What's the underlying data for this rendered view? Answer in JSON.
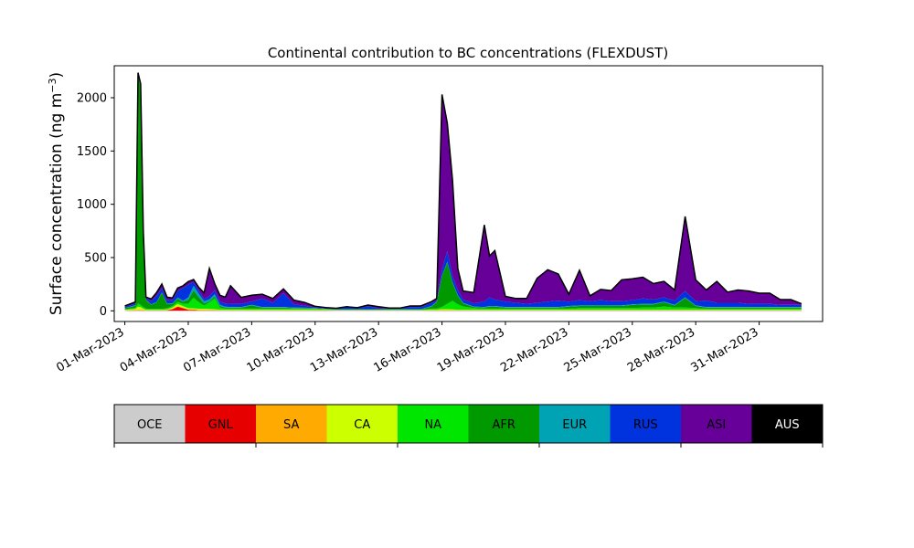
{
  "chart_data": {
    "type": "area",
    "title": "Continental contribution to BC concentrations (FLEXDUST)",
    "ylabel": "Surface concentration (ng m",
    "ylabel_sup": "−3",
    "ylabel_close": ")",
    "xlabel": "",
    "ylim": [
      -100,
      2300
    ],
    "xlim": [
      "2023-02-28T12:00",
      "2023-04-03T00:00"
    ],
    "yticks": [
      0,
      500,
      1000,
      1500,
      2000
    ],
    "yticklabels": [
      "0",
      "500",
      "1000",
      "1500",
      "2000"
    ],
    "xticks": [
      "2023-03-01",
      "2023-03-04",
      "2023-03-07",
      "2023-03-10",
      "2023-03-13",
      "2023-03-16",
      "2023-03-19",
      "2023-03-22",
      "2023-03-25",
      "2023-03-28",
      "2023-03-31"
    ],
    "xticklabels": [
      "01-Mar-2023",
      "04-Mar-2023",
      "07-Mar-2023",
      "10-Mar-2023",
      "13-Mar-2023",
      "16-Mar-2023",
      "19-Mar-2023",
      "22-Mar-2023",
      "25-Mar-2023",
      "28-Mar-2023",
      "31-Mar-2023"
    ],
    "stack_order": [
      "OCE",
      "GNL",
      "SA",
      "CA",
      "NA",
      "AFR",
      "EUR",
      "RUS",
      "ASI",
      "AUS"
    ],
    "x": [
      "2023-03-01T00:00",
      "2023-03-01T12:00",
      "2023-03-01T15:00",
      "2023-03-01T18:00",
      "2023-03-01T21:00",
      "2023-03-02T00:00",
      "2023-03-02T06:00",
      "2023-03-02T12:00",
      "2023-03-02T18:00",
      "2023-03-03T00:00",
      "2023-03-03T06:00",
      "2023-03-03T12:00",
      "2023-03-03T18:00",
      "2023-03-04T00:00",
      "2023-03-04T06:00",
      "2023-03-04T12:00",
      "2023-03-04T18:00",
      "2023-03-05T00:00",
      "2023-03-05T06:00",
      "2023-03-05T12:00",
      "2023-03-05T18:00",
      "2023-03-06T00:00",
      "2023-03-06T12:00",
      "2023-03-07T00:00",
      "2023-03-07T12:00",
      "2023-03-08T00:00",
      "2023-03-08T12:00",
      "2023-03-09T00:00",
      "2023-03-09T12:00",
      "2023-03-10T00:00",
      "2023-03-10T12:00",
      "2023-03-11T00:00",
      "2023-03-11T12:00",
      "2023-03-12T00:00",
      "2023-03-12T12:00",
      "2023-03-13T00:00",
      "2023-03-13T12:00",
      "2023-03-14T00:00",
      "2023-03-14T12:00",
      "2023-03-15T00:00",
      "2023-03-15T12:00",
      "2023-03-15T18:00",
      "2023-03-16T00:00",
      "2023-03-16T06:00",
      "2023-03-16T12:00",
      "2023-03-16T18:00",
      "2023-03-17T00:00",
      "2023-03-17T12:00",
      "2023-03-18T00:00",
      "2023-03-18T06:00",
      "2023-03-18T12:00",
      "2023-03-19T00:00",
      "2023-03-19T12:00",
      "2023-03-20T00:00",
      "2023-03-20T12:00",
      "2023-03-21T00:00",
      "2023-03-21T12:00",
      "2023-03-22T00:00",
      "2023-03-22T12:00",
      "2023-03-23T00:00",
      "2023-03-23T12:00",
      "2023-03-24T00:00",
      "2023-03-24T12:00",
      "2023-03-25T00:00",
      "2023-03-25T12:00",
      "2023-03-26T00:00",
      "2023-03-26T12:00",
      "2023-03-27T00:00",
      "2023-03-27T12:00",
      "2023-03-28T00:00",
      "2023-03-28T12:00",
      "2023-03-29T00:00",
      "2023-03-29T12:00",
      "2023-03-30T00:00",
      "2023-03-30T12:00",
      "2023-03-31T00:00",
      "2023-03-31T12:00",
      "2023-04-01T00:00",
      "2023-04-01T12:00",
      "2023-04-02T00:00"
    ],
    "series": [
      {
        "name": "OCE",
        "color": "#cccccc",
        "values": [
          0,
          0,
          0,
          0,
          0,
          0,
          0,
          0,
          0,
          0,
          0,
          0,
          0,
          0,
          0,
          0,
          0,
          0,
          0,
          0,
          0,
          0,
          0,
          0,
          0,
          0,
          0,
          0,
          0,
          0,
          0,
          0,
          0,
          0,
          0,
          0,
          0,
          0,
          0,
          0,
          0,
          0,
          0,
          0,
          0,
          0,
          0,
          0,
          0,
          0,
          0,
          0,
          0,
          0,
          0,
          0,
          0,
          0,
          0,
          0,
          0,
          0,
          0,
          0,
          0,
          0,
          0,
          0,
          0,
          0,
          0,
          0,
          0,
          0,
          0,
          0,
          0,
          0,
          0,
          0
        ]
      },
      {
        "name": "GNL",
        "color": "#e60000",
        "values": [
          2,
          5,
          5,
          5,
          5,
          3,
          3,
          3,
          3,
          5,
          15,
          40,
          25,
          10,
          8,
          5,
          5,
          5,
          5,
          3,
          3,
          3,
          3,
          3,
          3,
          3,
          3,
          3,
          3,
          3,
          3,
          2,
          2,
          2,
          2,
          2,
          2,
          2,
          2,
          2,
          3,
          3,
          3,
          3,
          3,
          3,
          3,
          3,
          3,
          3,
          3,
          3,
          3,
          3,
          3,
          3,
          3,
          3,
          3,
          3,
          3,
          3,
          3,
          3,
          3,
          3,
          3,
          3,
          3,
          3,
          3,
          3,
          3,
          3,
          3,
          3,
          3,
          3,
          3,
          3
        ]
      },
      {
        "name": "SA",
        "color": "#ffaa00",
        "values": [
          2,
          3,
          5,
          5,
          5,
          3,
          3,
          3,
          3,
          3,
          5,
          5,
          5,
          5,
          5,
          5,
          5,
          3,
          3,
          3,
          3,
          3,
          3,
          3,
          3,
          3,
          3,
          3,
          3,
          3,
          3,
          2,
          2,
          2,
          2,
          2,
          2,
          2,
          2,
          2,
          3,
          3,
          3,
          3,
          3,
          3,
          3,
          3,
          3,
          3,
          3,
          3,
          3,
          3,
          3,
          3,
          3,
          3,
          3,
          3,
          3,
          3,
          3,
          3,
          3,
          3,
          3,
          3,
          3,
          3,
          3,
          3,
          3,
          3,
          3,
          3,
          3,
          3,
          3,
          3
        ]
      },
      {
        "name": "CA",
        "color": "#ccff00",
        "values": [
          5,
          10,
          30,
          25,
          10,
          5,
          3,
          3,
          3,
          5,
          10,
          20,
          15,
          10,
          10,
          10,
          10,
          10,
          8,
          5,
          5,
          5,
          5,
          5,
          5,
          5,
          5,
          5,
          5,
          3,
          3,
          2,
          2,
          2,
          2,
          2,
          2,
          2,
          2,
          2,
          5,
          5,
          10,
          10,
          8,
          5,
          5,
          5,
          5,
          5,
          5,
          5,
          5,
          5,
          5,
          5,
          5,
          5,
          5,
          5,
          5,
          5,
          5,
          5,
          5,
          5,
          5,
          5,
          5,
          5,
          5,
          5,
          5,
          5,
          5,
          5,
          5,
          5,
          5,
          5
        ]
      },
      {
        "name": "NA",
        "color": "#00e600",
        "values": [
          5,
          10,
          30,
          20,
          15,
          10,
          10,
          10,
          10,
          10,
          15,
          20,
          20,
          40,
          100,
          60,
          30,
          60,
          100,
          20,
          10,
          10,
          10,
          10,
          10,
          10,
          10,
          10,
          10,
          10,
          5,
          3,
          3,
          3,
          3,
          3,
          3,
          3,
          3,
          3,
          10,
          10,
          20,
          50,
          80,
          50,
          30,
          15,
          10,
          10,
          10,
          10,
          10,
          10,
          10,
          10,
          10,
          10,
          15,
          15,
          15,
          15,
          15,
          15,
          20,
          20,
          30,
          20,
          20,
          15,
          10,
          10,
          10,
          10,
          10,
          10,
          10,
          10,
          10,
          10
        ]
      },
      {
        "name": "AFR",
        "color": "#009900",
        "values": [
          10,
          20,
          2130,
          2050,
          700,
          80,
          40,
          60,
          150,
          40,
          20,
          30,
          20,
          40,
          70,
          50,
          20,
          10,
          20,
          15,
          10,
          10,
          10,
          30,
          10,
          10,
          10,
          5,
          3,
          3,
          3,
          3,
          3,
          3,
          3,
          3,
          5,
          5,
          5,
          5,
          20,
          60,
          290,
          390,
          170,
          80,
          30,
          10,
          10,
          20,
          20,
          10,
          10,
          10,
          10,
          10,
          10,
          20,
          20,
          20,
          20,
          20,
          20,
          30,
          30,
          30,
          40,
          20,
          90,
          20,
          10,
          10,
          10,
          10,
          10,
          10,
          10,
          10,
          10,
          10
        ]
      },
      {
        "name": "EUR",
        "color": "#00a3b3",
        "values": [
          3,
          5,
          5,
          5,
          5,
          3,
          3,
          3,
          3,
          5,
          5,
          10,
          10,
          20,
          40,
          30,
          20,
          20,
          20,
          10,
          8,
          5,
          5,
          5,
          5,
          5,
          5,
          5,
          5,
          5,
          3,
          2,
          2,
          2,
          2,
          2,
          2,
          2,
          2,
          2,
          5,
          5,
          5,
          5,
          5,
          5,
          5,
          5,
          5,
          5,
          5,
          5,
          5,
          5,
          5,
          5,
          5,
          5,
          5,
          5,
          5,
          5,
          5,
          5,
          5,
          5,
          5,
          5,
          5,
          5,
          5,
          5,
          5,
          5,
          5,
          5,
          5,
          5,
          5,
          5
        ]
      },
      {
        "name": "RUS",
        "color": "#0033dd",
        "values": [
          10,
          15,
          15,
          10,
          5,
          10,
          30,
          60,
          40,
          30,
          30,
          60,
          120,
          120,
          40,
          30,
          20,
          30,
          40,
          30,
          30,
          30,
          30,
          30,
          80,
          40,
          130,
          30,
          20,
          5,
          5,
          5,
          20,
          10,
          30,
          10,
          5,
          5,
          20,
          20,
          30,
          10,
          60,
          100,
          60,
          50,
          30,
          30,
          50,
          80,
          60,
          50,
          40,
          30,
          40,
          50,
          60,
          40,
          50,
          40,
          50,
          40,
          40,
          40,
          50,
          40,
          40,
          40,
          60,
          40,
          60,
          40,
          40,
          40,
          30,
          30,
          30,
          20,
          20,
          20
        ]
      },
      {
        "name": "ASI",
        "color": "#660099",
        "values": [
          10,
          15,
          15,
          10,
          5,
          15,
          20,
          30,
          40,
          30,
          20,
          30,
          20,
          30,
          20,
          30,
          60,
          260,
          60,
          60,
          60,
          170,
          60,
          60,
          40,
          40,
          40,
          40,
          30,
          10,
          5,
          5,
          5,
          5,
          10,
          15,
          5,
          5,
          10,
          10,
          10,
          20,
          1640,
          1200,
          900,
          200,
          80,
          100,
          720,
          390,
          460,
          50,
          40,
          50,
          230,
          300,
          250,
          70,
          280,
          50,
          100,
          100,
          200,
          200,
          200,
          150,
          150,
          100,
          700,
          200,
          100,
          200,
          100,
          120,
          120,
          100,
          100,
          50,
          50,
          10
        ]
      },
      {
        "name": "AUS",
        "color": "#000000",
        "values": [
          0,
          0,
          0,
          0,
          0,
          0,
          0,
          0,
          0,
          0,
          0,
          0,
          0,
          0,
          0,
          0,
          0,
          0,
          0,
          0,
          0,
          0,
          0,
          0,
          0,
          0,
          0,
          0,
          0,
          0,
          0,
          0,
          0,
          0,
          0,
          0,
          0,
          0,
          0,
          0,
          0,
          0,
          0,
          0,
          0,
          0,
          0,
          0,
          0,
          0,
          0,
          0,
          0,
          0,
          0,
          0,
          0,
          0,
          0,
          0,
          0,
          0,
          0,
          0,
          0,
          0,
          0,
          0,
          0,
          0,
          0,
          0,
          0,
          0,
          0,
          0,
          0,
          0,
          0,
          0
        ]
      }
    ],
    "legend": {
      "placement": "bottom",
      "entries": [
        "OCE",
        "GNL",
        "SA",
        "CA",
        "NA",
        "AFR",
        "EUR",
        "RUS",
        "ASI",
        "AUS"
      ],
      "colors": [
        "#cccccc",
        "#e60000",
        "#ffaa00",
        "#ccff00",
        "#00e600",
        "#009900",
        "#00a3b3",
        "#0033dd",
        "#660099",
        "#000000"
      ],
      "text_colors": [
        "#000000",
        "#000000",
        "#000000",
        "#000000",
        "#000000",
        "#000000",
        "#000000",
        "#000000",
        "#000000",
        "#ffffff"
      ]
    },
    "grid": false
  }
}
